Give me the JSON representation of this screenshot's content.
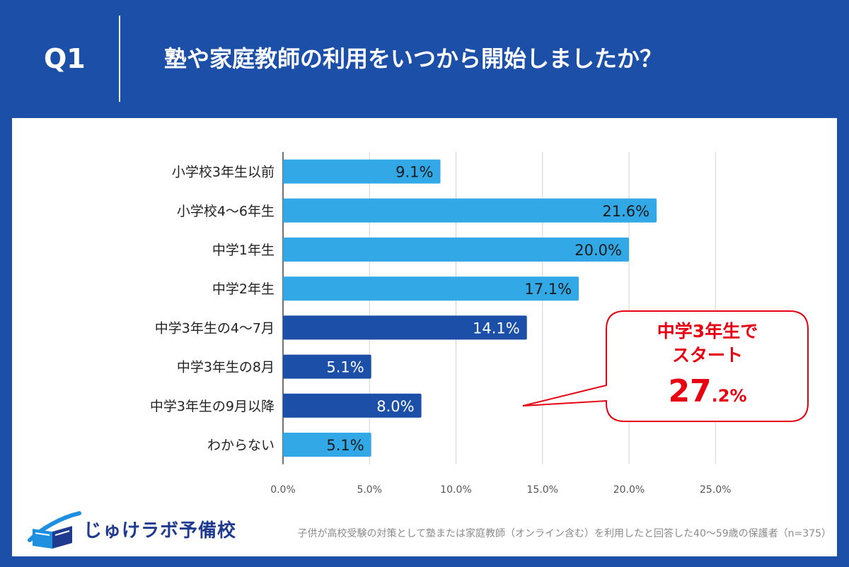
{
  "header": {
    "question_label": "Q1",
    "title": "塾や家庭教師の利用をいつから開始しましたか？"
  },
  "callout": {
    "line1": "中学3年生で",
    "line2": "スタート",
    "value_main": "27",
    "value_sub": ".2%",
    "color": "#e60012"
  },
  "logo": {
    "name": "じゅけラボ予備校"
  },
  "footnote": "子供が高校受験の対策として塾または家庭教師（オンライン含む）を利用したと回答した40～59歳の保護者（n=375）",
  "colors": {
    "bar_light": "#33a8e6",
    "bar_dark": "#1b4fa8",
    "background": "#1b4fa8"
  },
  "chart_data": {
    "type": "bar",
    "orientation": "horizontal",
    "title": "",
    "xlabel": "",
    "ylabel": "",
    "xlim": [
      0,
      25
    ],
    "categories": [
      "小学校3年生以前",
      "小学校4～6年生",
      "中学1年生",
      "中学2年生",
      "中学3年生の4～7月",
      "中学3年生の8月",
      "中学3年生の9月以降",
      "わからない"
    ],
    "values": [
      9.1,
      21.6,
      20.0,
      17.1,
      14.1,
      5.1,
      8.0,
      5.1
    ],
    "value_labels": [
      "9.1%",
      "21.6%",
      "20.0%",
      "17.1%",
      "14.1%",
      "5.1%",
      "8.0%",
      "5.1%"
    ],
    "highlight": [
      false,
      false,
      false,
      false,
      true,
      true,
      true,
      false
    ],
    "x_ticks": [
      "0.0%",
      "5.0%",
      "10.0%",
      "15.0%",
      "20.0%",
      "25.0%"
    ],
    "grid": true
  }
}
